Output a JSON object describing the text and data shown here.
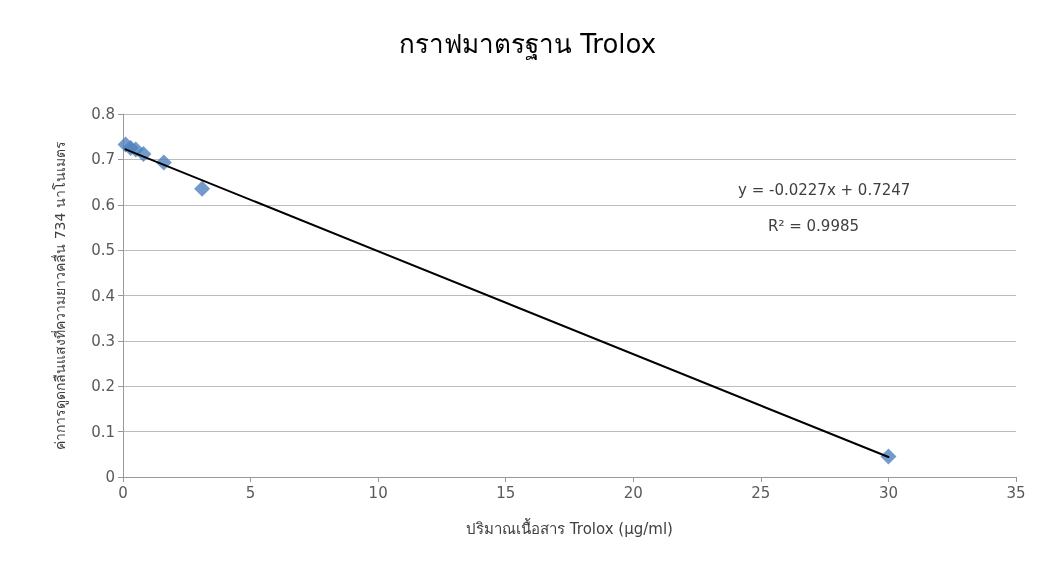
{
  "chart_data": {
    "type": "scatter",
    "title": "กราฟมาตรฐาน Trolox",
    "xlabel": "ปริมาณเนื้อสาร Trolox (µg/ml)",
    "ylabel": "ค่าการดูดกลืนแสงที่ความยาวคลื่น 734 นาโนเมตร",
    "series": [
      {
        "color": "#4f81bd",
        "x": [
          0.1,
          0.3,
          0.5,
          0.8,
          1.6,
          3.1,
          30
        ],
        "values": [
          0.733,
          0.725,
          0.722,
          0.712,
          0.693,
          0.635,
          0.045
        ],
        "marker": "diamond"
      },
      {
        "type": "line",
        "color": "#000000",
        "x": [
          0.1,
          30
        ],
        "values": [
          0.722,
          0.044
        ],
        "marker": "none",
        "line_style": "solid"
      }
    ],
    "annotations": [
      "y = -0.0227x + 0.7247",
      "R² = 0.9985"
    ],
    "xlim": [
      0,
      35
    ],
    "xticks": [
      0,
      5,
      10,
      15,
      20,
      25,
      30,
      35
    ],
    "ylim": [
      0,
      0.8
    ],
    "yticks": [
      0,
      0.1,
      0.2,
      0.3,
      0.4,
      0.5,
      0.6,
      0.7,
      0.8
    ],
    "grid": "y"
  }
}
